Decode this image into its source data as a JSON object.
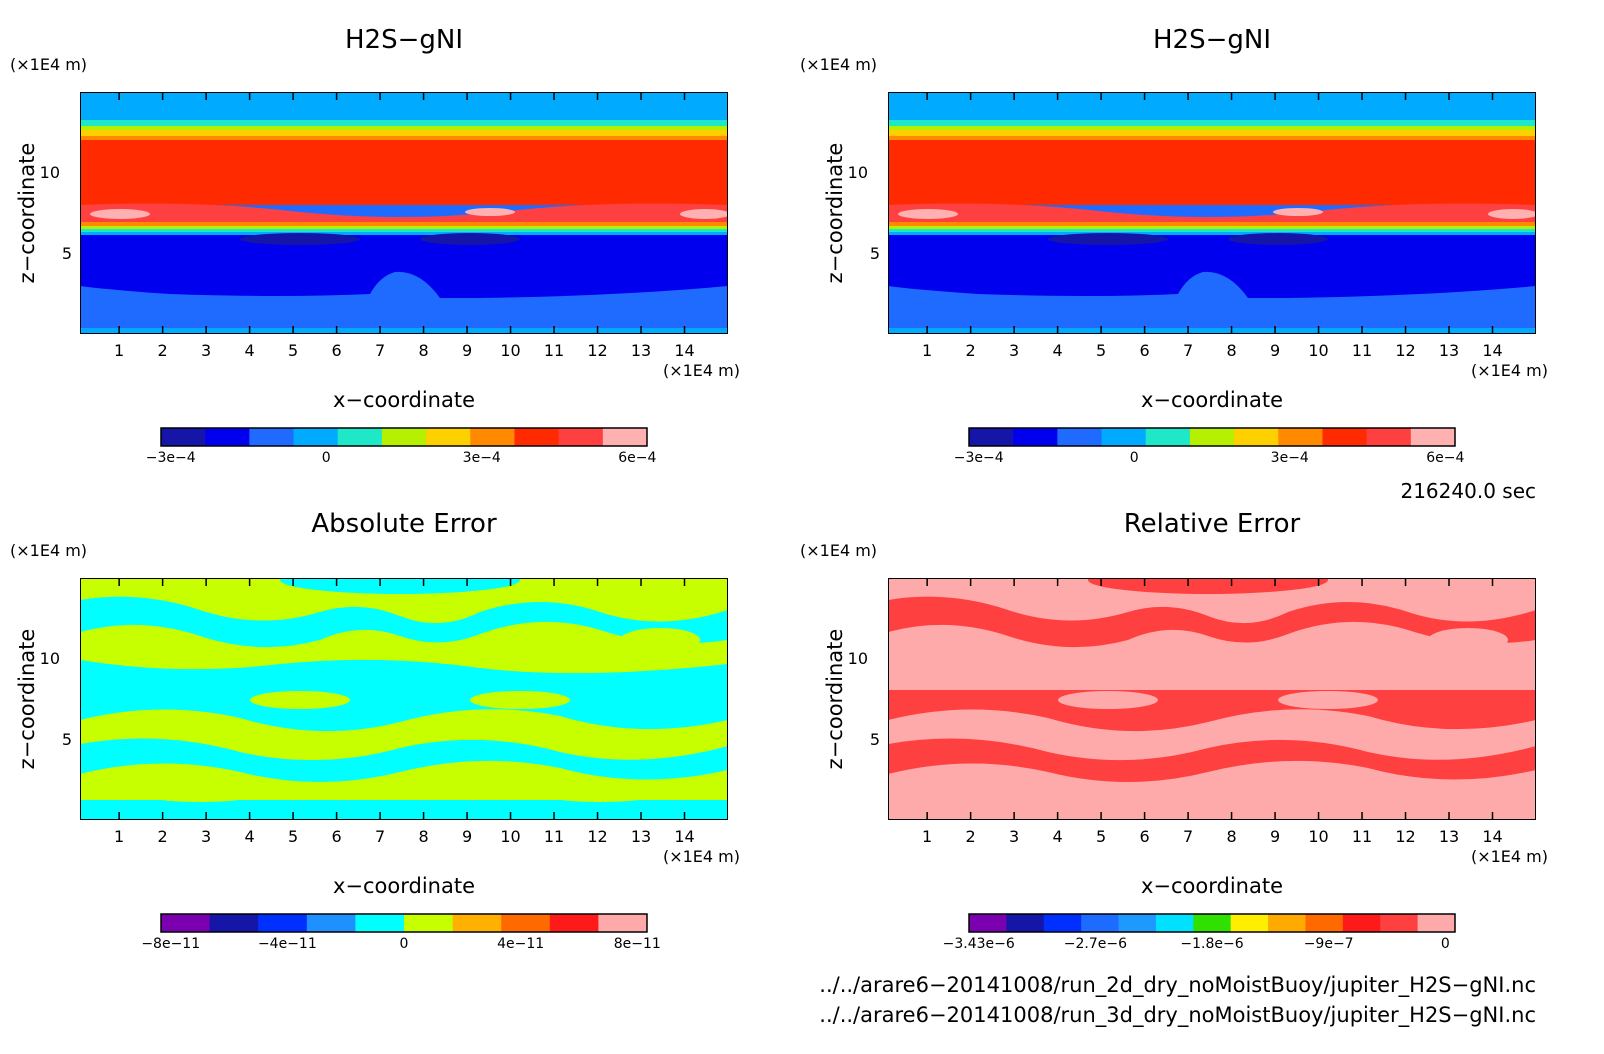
{
  "panels": [
    {
      "title": "H2S−gNI",
      "xunit": "(×1E4 m)",
      "zunit": "(×1E4 m)",
      "xlabel": "x−coordinate",
      "ylabel": "z−coordinate",
      "colorbar": {
        "colors": [
          "#1515a8",
          "#0000ee",
          "#1f6bff",
          "#00aaff",
          "#1ee8c8",
          "#b5f000",
          "#ffd000",
          "#ff8a00",
          "#ff2a00",
          "#ff4040",
          "#ffb0b0"
        ],
        "labels": [
          "−3e−4",
          "0",
          "3e−4",
          "6e−4"
        ]
      }
    },
    {
      "title": "H2S−gNI",
      "xunit": "(×1E4 m)",
      "zunit": "(×1E4 m)",
      "xlabel": "x−coordinate",
      "ylabel": "z−coordinate",
      "colorbar": {
        "colors": [
          "#1515a8",
          "#0000ee",
          "#1f6bff",
          "#00aaff",
          "#1ee8c8",
          "#b5f000",
          "#ffd000",
          "#ff8a00",
          "#ff2a00",
          "#ff4040",
          "#ffb0b0"
        ],
        "labels": [
          "−3e−4",
          "0",
          "3e−4",
          "6e−4"
        ]
      }
    },
    {
      "title": "Absolute Error",
      "xunit": "(×1E4 m)",
      "zunit": "(×1E4 m)",
      "xlabel": "x−coordinate",
      "ylabel": "z−coordinate",
      "colorbar": {
        "colors": [
          "#7a00b0",
          "#1515a8",
          "#0030ff",
          "#1e90ff",
          "#00ffff",
          "#c8ff00",
          "#ffb000",
          "#ff6a00",
          "#ff1a1a",
          "#ffaaaa"
        ],
        "labels": [
          "−8e−11",
          "−4e−11",
          "0",
          "4e−11",
          "8e−11"
        ]
      }
    },
    {
      "title": "Relative Error",
      "xunit": "(×1E4 m)",
      "zunit": "(×1E4 m)",
      "xlabel": "x−coordinate",
      "ylabel": "z−coordinate",
      "colorbar": {
        "colors": [
          "#7a00b0",
          "#1515a8",
          "#0030ff",
          "#1e6bff",
          "#1e9aff",
          "#00e0ff",
          "#30e000",
          "#ffee00",
          "#ffaa00",
          "#ff6a00",
          "#ff1a1a",
          "#ff4040",
          "#ffaaaa"
        ],
        "labels": [
          "−3.43e−6",
          "−2.7e−6",
          "−1.8e−6",
          "−9e−7",
          "0"
        ]
      }
    }
  ],
  "time_label": "216240.0 sec",
  "paths": [
    "../../arare6−20141008/run_2d_dry_noMoistBuoy/jupiter_H2S−gNI.nc",
    "../../arare6−20141008/run_3d_dry_noMoistBuoy/jupiter_H2S−gNI.nc"
  ],
  "chart_data": [
    {
      "type": "heatmap",
      "title": "H2S−gNI",
      "xlabel": "x−coordinate",
      "ylabel": "z−coordinate",
      "x_ticks": [
        1,
        2,
        3,
        4,
        5,
        6,
        7,
        8,
        9,
        10,
        11,
        12,
        13,
        14
      ],
      "y_ticks": [
        5,
        10
      ],
      "xlim": [
        0.1,
        15.0
      ],
      "ylim": [
        0.1,
        15.0
      ],
      "color_levels": [
        "−3e−4",
        "0",
        "3e−4",
        "6e−4"
      ],
      "layers_top_to_bottom": [
        {
          "z_range": [
            13.0,
            15.0
          ],
          "color": "#00aaff"
        },
        {
          "z_range": [
            12.0,
            13.0
          ],
          "color": "#ffd000"
        },
        {
          "z_range": [
            7.5,
            12.0
          ],
          "color": "#ff2a00"
        },
        {
          "z_range": [
            6.5,
            7.5
          ],
          "color": "#ff4040"
        },
        {
          "z_range": [
            2.5,
            6.3
          ],
          "color": "#0000ee"
        },
        {
          "z_range": [
            0.1,
            2.5
          ],
          "color": "#1f6bff"
        }
      ]
    },
    {
      "type": "heatmap",
      "title": "H2S−gNI",
      "xlabel": "x−coordinate",
      "ylabel": "z−coordinate",
      "x_ticks": [
        1,
        2,
        3,
        4,
        5,
        6,
        7,
        8,
        9,
        10,
        11,
        12,
        13,
        14
      ],
      "y_ticks": [
        5,
        10
      ],
      "xlim": [
        0.1,
        15.0
      ],
      "ylim": [
        0.1,
        15.0
      ],
      "color_levels": [
        "−3e−4",
        "0",
        "3e−4",
        "6e−4"
      ]
    },
    {
      "type": "heatmap",
      "title": "Absolute Error",
      "xlabel": "x−coordinate",
      "ylabel": "z−coordinate",
      "x_ticks": [
        1,
        2,
        3,
        4,
        5,
        6,
        7,
        8,
        9,
        10,
        11,
        12,
        13,
        14
      ],
      "y_ticks": [
        5,
        10
      ],
      "xlim": [
        0.1,
        15.0
      ],
      "ylim": [
        0.1,
        15.0
      ],
      "color_levels": [
        "−8e−11",
        "−4e−11",
        "0",
        "4e−11",
        "8e−11"
      ],
      "dominant_colors": [
        "#00ffff",
        "#c8ff00"
      ]
    },
    {
      "type": "heatmap",
      "title": "Relative Error",
      "xlabel": "x−coordinate",
      "ylabel": "z−coordinate",
      "x_ticks": [
        1,
        2,
        3,
        4,
        5,
        6,
        7,
        8,
        9,
        10,
        11,
        12,
        13,
        14
      ],
      "y_ticks": [
        5,
        10
      ],
      "xlim": [
        0.1,
        15.0
      ],
      "ylim": [
        0.1,
        15.0
      ],
      "color_levels": [
        "−3.43e−6",
        "−2.7e−6",
        "−1.8e−6",
        "−9e−7",
        "0"
      ],
      "dominant_colors": [
        "#ff4040",
        "#ffaaaa"
      ]
    }
  ]
}
